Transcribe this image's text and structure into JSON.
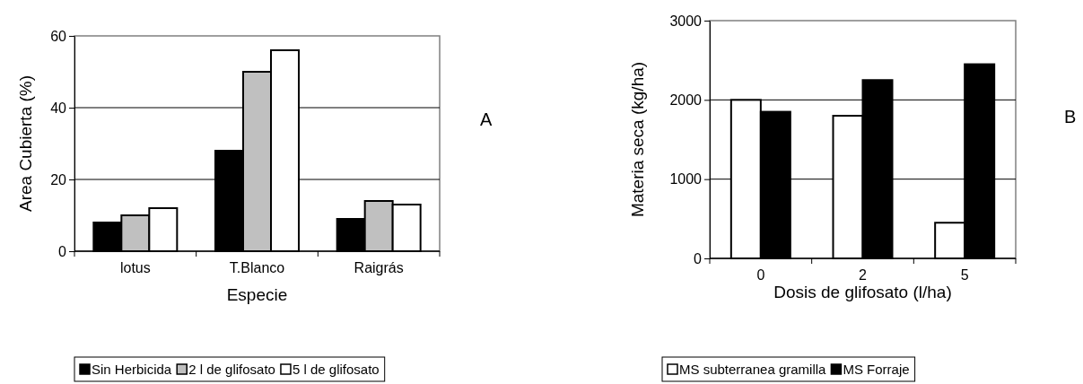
{
  "chart_data": [
    {
      "type": "bar",
      "xlabel": "Especie",
      "ylabel": "Area Cubierta (%)",
      "categories": [
        "lotus",
        "T.Blanco",
        "Raigrás"
      ],
      "series": [
        {
          "name": "Sin Herbicida",
          "color": "#000000",
          "values": [
            8,
            28,
            9
          ]
        },
        {
          "name": "2 l de glifosato",
          "color": "#c0c0c0",
          "values": [
            10,
            50,
            14
          ]
        },
        {
          "name": "5 l de glifosato",
          "color": "#ffffff",
          "values": [
            12,
            56,
            13
          ]
        }
      ],
      "ylim": [
        0,
        60
      ],
      "yticks": [
        0,
        20,
        40,
        60
      ],
      "grid": "y",
      "legend": "bottom",
      "annotations": [
        "A"
      ]
    },
    {
      "type": "bar",
      "xlabel": "Dosis de glifosato (l/ha)",
      "ylabel": "Materia seca (kg/ha)",
      "categories": [
        "0",
        "2",
        "5"
      ],
      "series": [
        {
          "name": "MS subterranea gramilla",
          "color": "#ffffff",
          "values": [
            2000,
            1800,
            450
          ]
        },
        {
          "name": "MS Forraje",
          "color": "#000000",
          "values": [
            1850,
            2250,
            2450
          ]
        }
      ],
      "ylim": [
        0,
        3000
      ],
      "yticks": [
        0,
        1000,
        2000,
        3000
      ],
      "grid": "y",
      "legend": "bottom",
      "annotations": [
        "B"
      ]
    }
  ]
}
